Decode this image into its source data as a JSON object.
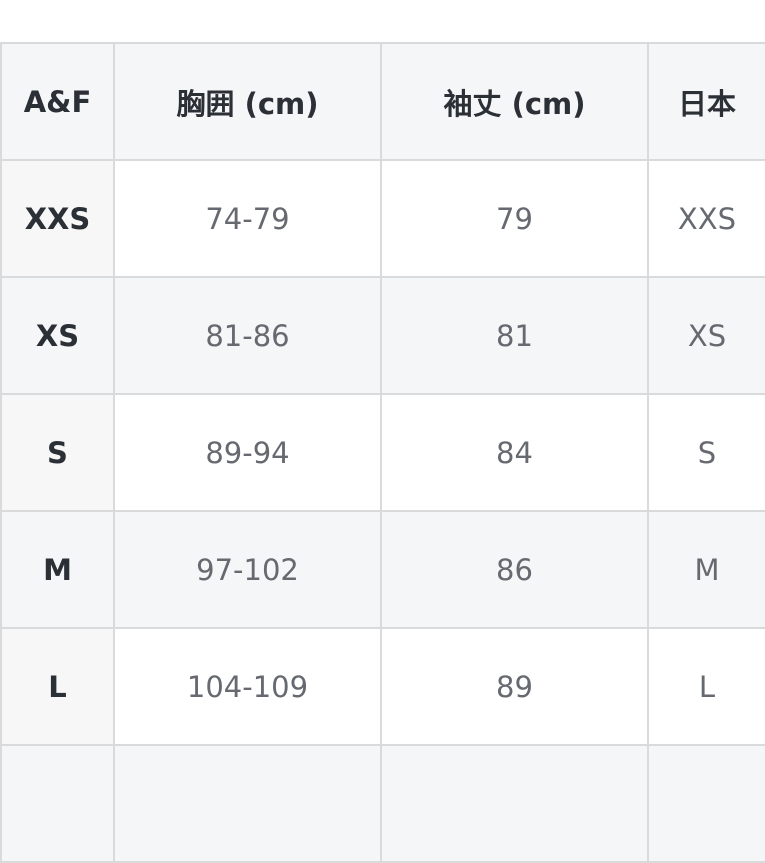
{
  "table": {
    "headers": [
      "A&F",
      "胸囲 (cm)",
      "袖丈 (cm)",
      "日本"
    ],
    "rows": [
      [
        "XXS",
        "74-79",
        "79",
        "XXS"
      ],
      [
        "XS",
        "81-86",
        "81",
        "XS"
      ],
      [
        "S",
        "89-94",
        "84",
        "S"
      ],
      [
        "M",
        "97-102",
        "86",
        "M"
      ],
      [
        "L",
        "104-109",
        "89",
        "L"
      ],
      [
        "",
        "",
        "",
        ""
      ]
    ]
  }
}
